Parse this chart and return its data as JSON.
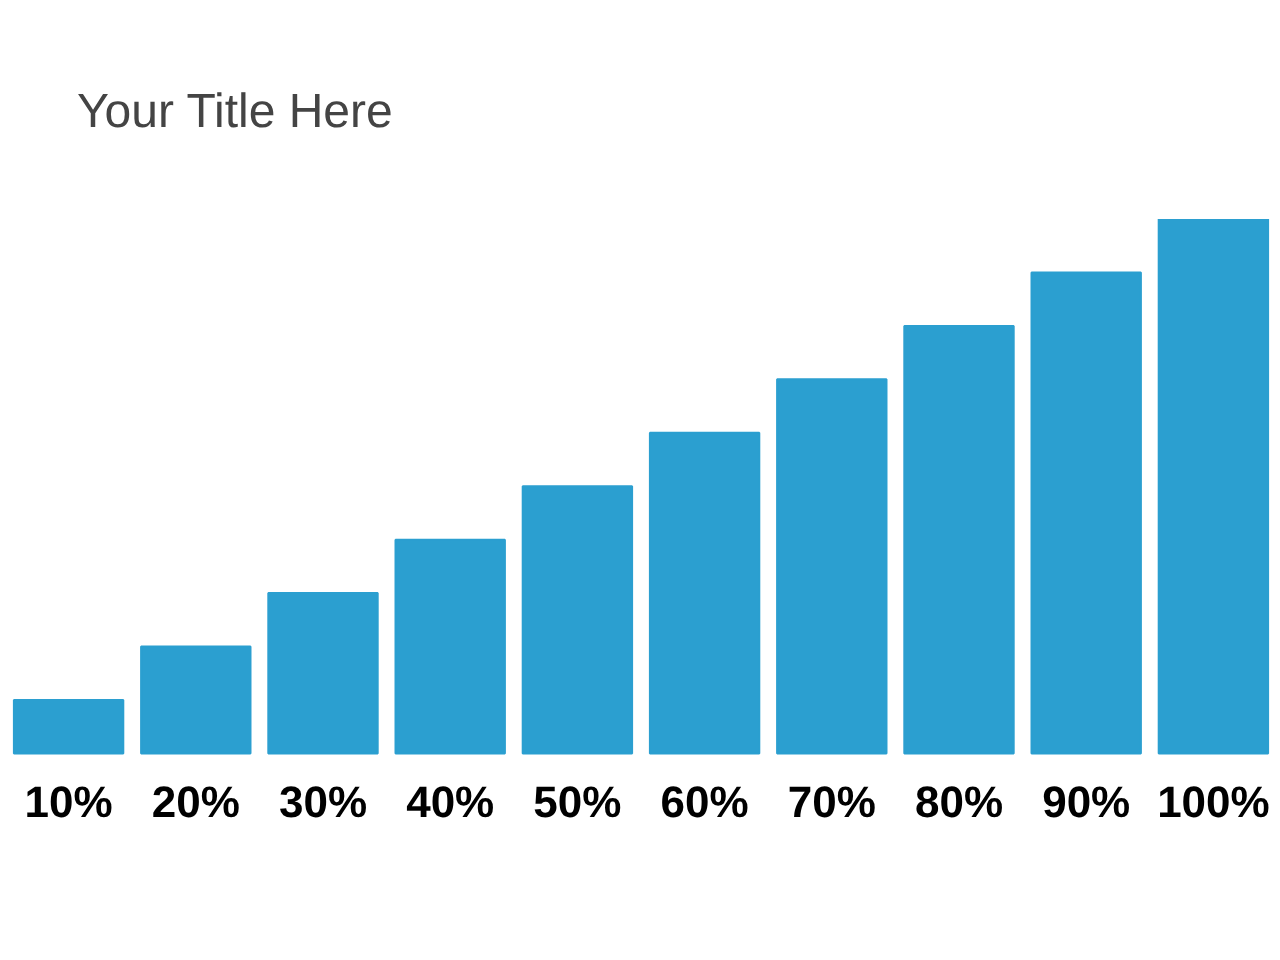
{
  "chart_data": {
    "type": "bar",
    "title": "Your Title Here",
    "categories": [
      null,
      null,
      null,
      null,
      null,
      null,
      null,
      null,
      null,
      null
    ],
    "values": [
      10,
      20,
      30,
      40,
      50,
      60,
      70,
      80,
      90,
      100
    ],
    "color": "#2b9fd0",
    "value_labels": [
      "10%",
      "20%",
      "30%",
      "40%",
      "50%",
      "60%",
      "70%",
      "80%",
      "90%",
      "100%"
    ]
  }
}
